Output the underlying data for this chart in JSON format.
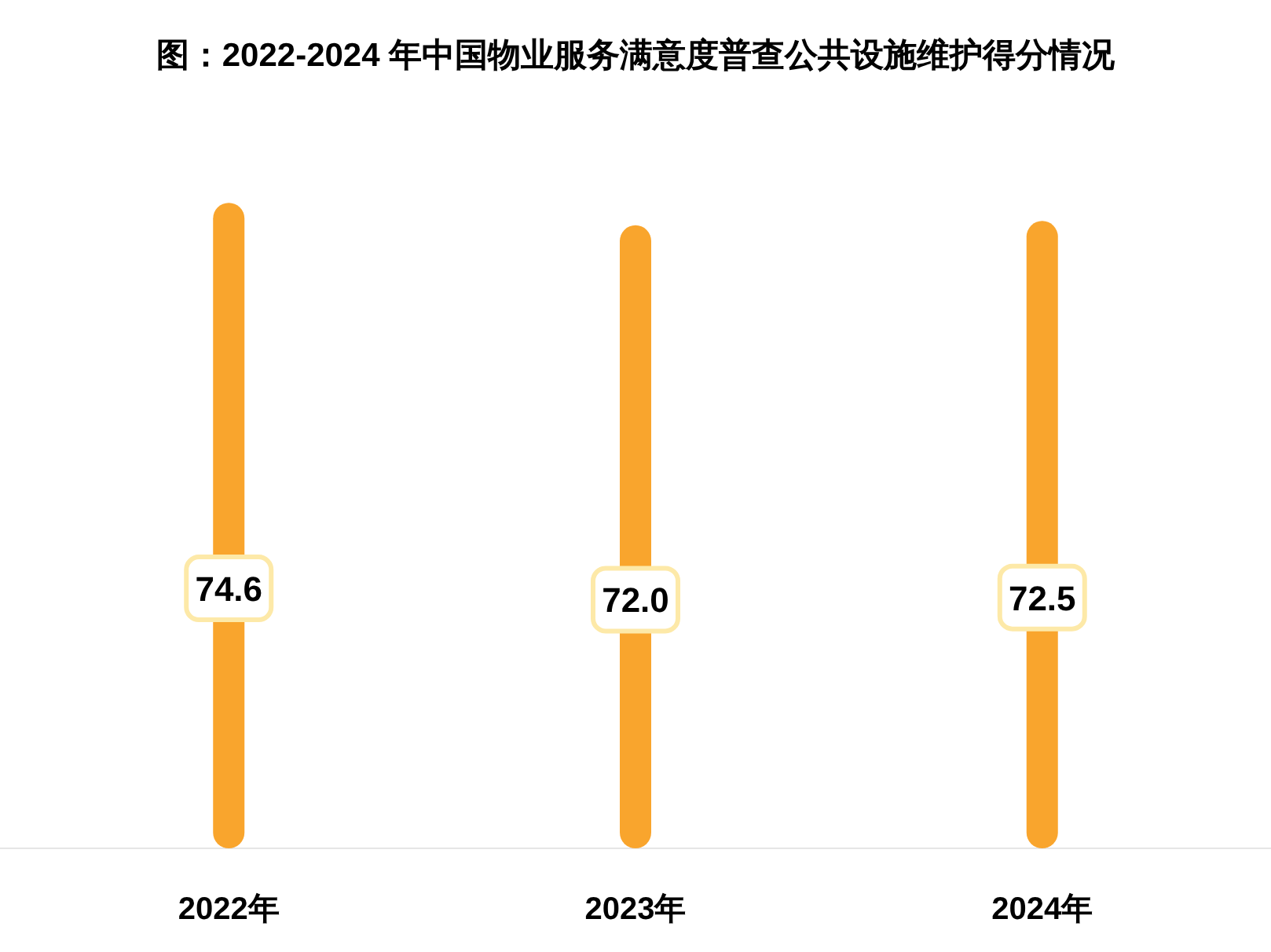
{
  "chart_data": {
    "type": "bar",
    "title": "图：2022-2024 年中国物业服务满意度普查公共设施维护得分情况",
    "categories": [
      "2022年",
      "2023年",
      "2024年"
    ],
    "values": [
      74.6,
      72.0,
      72.5
    ],
    "value_labels": [
      "74.6",
      "72.0",
      "72.5"
    ],
    "color": "#f9a52d",
    "grid": false
  }
}
